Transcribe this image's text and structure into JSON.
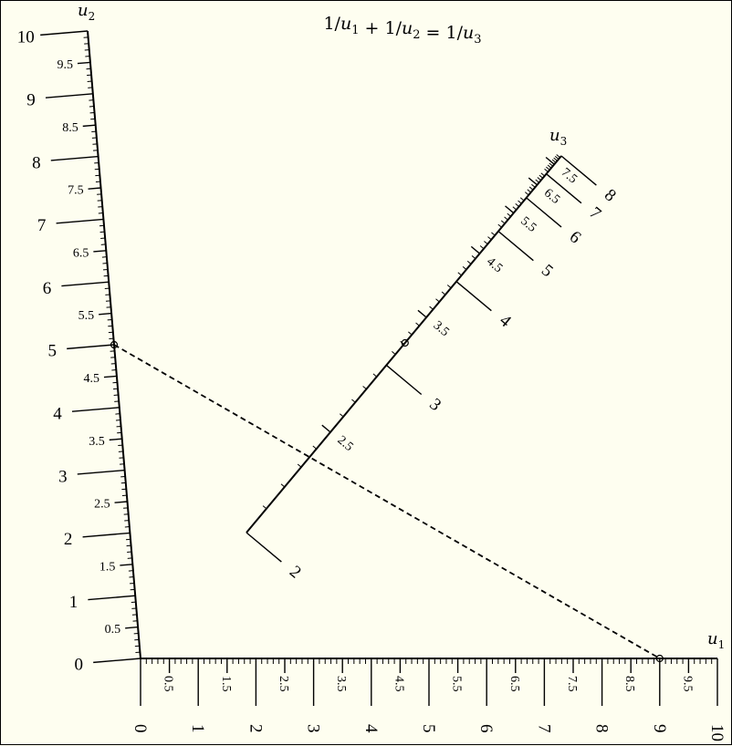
{
  "equation": {
    "parts": [
      {
        "text": "1/",
        "sub": ""
      },
      {
        "text": "u",
        "sub": "1",
        "italic": true
      },
      {
        "text": " + 1/",
        "sub": ""
      },
      {
        "text": "u",
        "sub": "2",
        "italic": true
      },
      {
        "text": " = 1/",
        "sub": ""
      },
      {
        "text": "u",
        "sub": "3",
        "italic": true
      }
    ]
  },
  "scales": {
    "u1": {
      "name": "u",
      "sub": "1",
      "min": 0,
      "max": 10,
      "major_labels": [
        "0",
        "1",
        "2",
        "3",
        "4",
        "5",
        "6",
        "7",
        "8",
        "9",
        "10"
      ],
      "half_labels": [
        "0.5",
        "1.5",
        "2.5",
        "3.5",
        "4.5",
        "5.5",
        "6.5",
        "7.5",
        "8.5",
        "9.5"
      ]
    },
    "u2": {
      "name": "u",
      "sub": "2",
      "min": 0,
      "max": 10,
      "major_labels": [
        "0",
        "1",
        "2",
        "3",
        "4",
        "5",
        "6",
        "7",
        "8",
        "9",
        "10"
      ],
      "half_labels": [
        "0.5",
        "1.5",
        "2.5",
        "3.5",
        "4.5",
        "5.5",
        "6.5",
        "7.5",
        "8.5",
        "9.5"
      ]
    },
    "u3": {
      "name": "u",
      "sub": "3",
      "min": 2,
      "max": 8,
      "major_labels": [
        "2",
        "3",
        "4",
        "5",
        "6",
        "7",
        "8"
      ],
      "half_labels": [
        "2.5",
        "3.5",
        "4.5",
        "5.5",
        "6.5",
        "7.5"
      ]
    }
  },
  "example": {
    "u1": 9,
    "u2": 5,
    "u3": 3.2143
  },
  "colors": {
    "ink": "#000000",
    "paper": "#fefef0"
  }
}
